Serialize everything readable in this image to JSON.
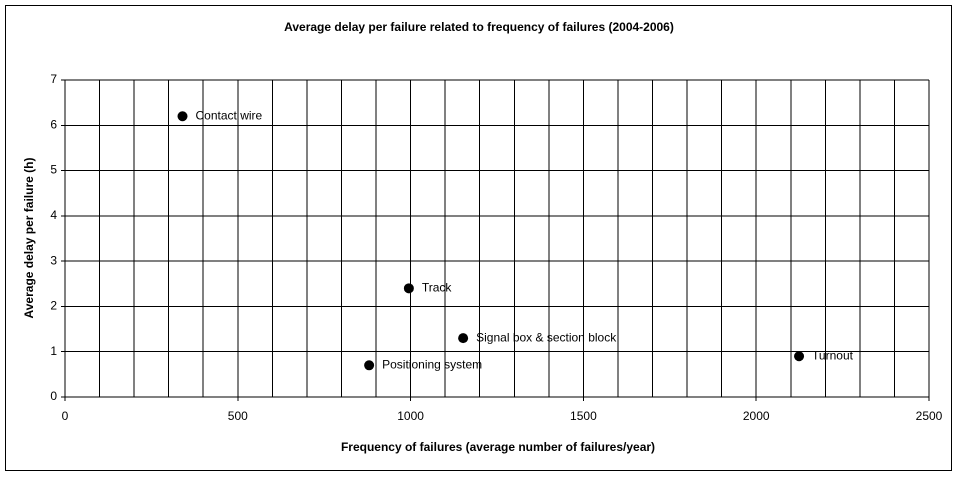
{
  "chart_data": {
    "type": "scatter",
    "title": "Average delay per failure related to frequency of failures  (2004-2006)",
    "x_label": "Frequency of failures (average number of failures/year)",
    "y_label": "Average delay per failure (h)",
    "series": [
      {
        "color": "#000000",
        "x": [
          340,
          995,
          1152,
          880,
          2124
        ],
        "values": [
          6.2,
          2.4,
          1.3,
          0.7,
          0.9
        ],
        "point_labels": [
          "Contact wire",
          "Track",
          "Signal box & section block",
          "Positioning system",
          "Turnout"
        ]
      }
    ],
    "xlim": [
      0,
      2500
    ],
    "xticks": [
      0,
      500,
      1000,
      1500,
      2000,
      2500
    ],
    "xminorticks": [
      100,
      200,
      300,
      400,
      600,
      700,
      800,
      900,
      1100,
      1200,
      1300,
      1400,
      1600,
      1700,
      1800,
      1900,
      2100,
      2200,
      2300,
      2400
    ],
    "ylim": [
      0,
      7
    ],
    "yticks": [
      0,
      1,
      2,
      3,
      4,
      5,
      6,
      7
    ],
    "grid": true
  }
}
